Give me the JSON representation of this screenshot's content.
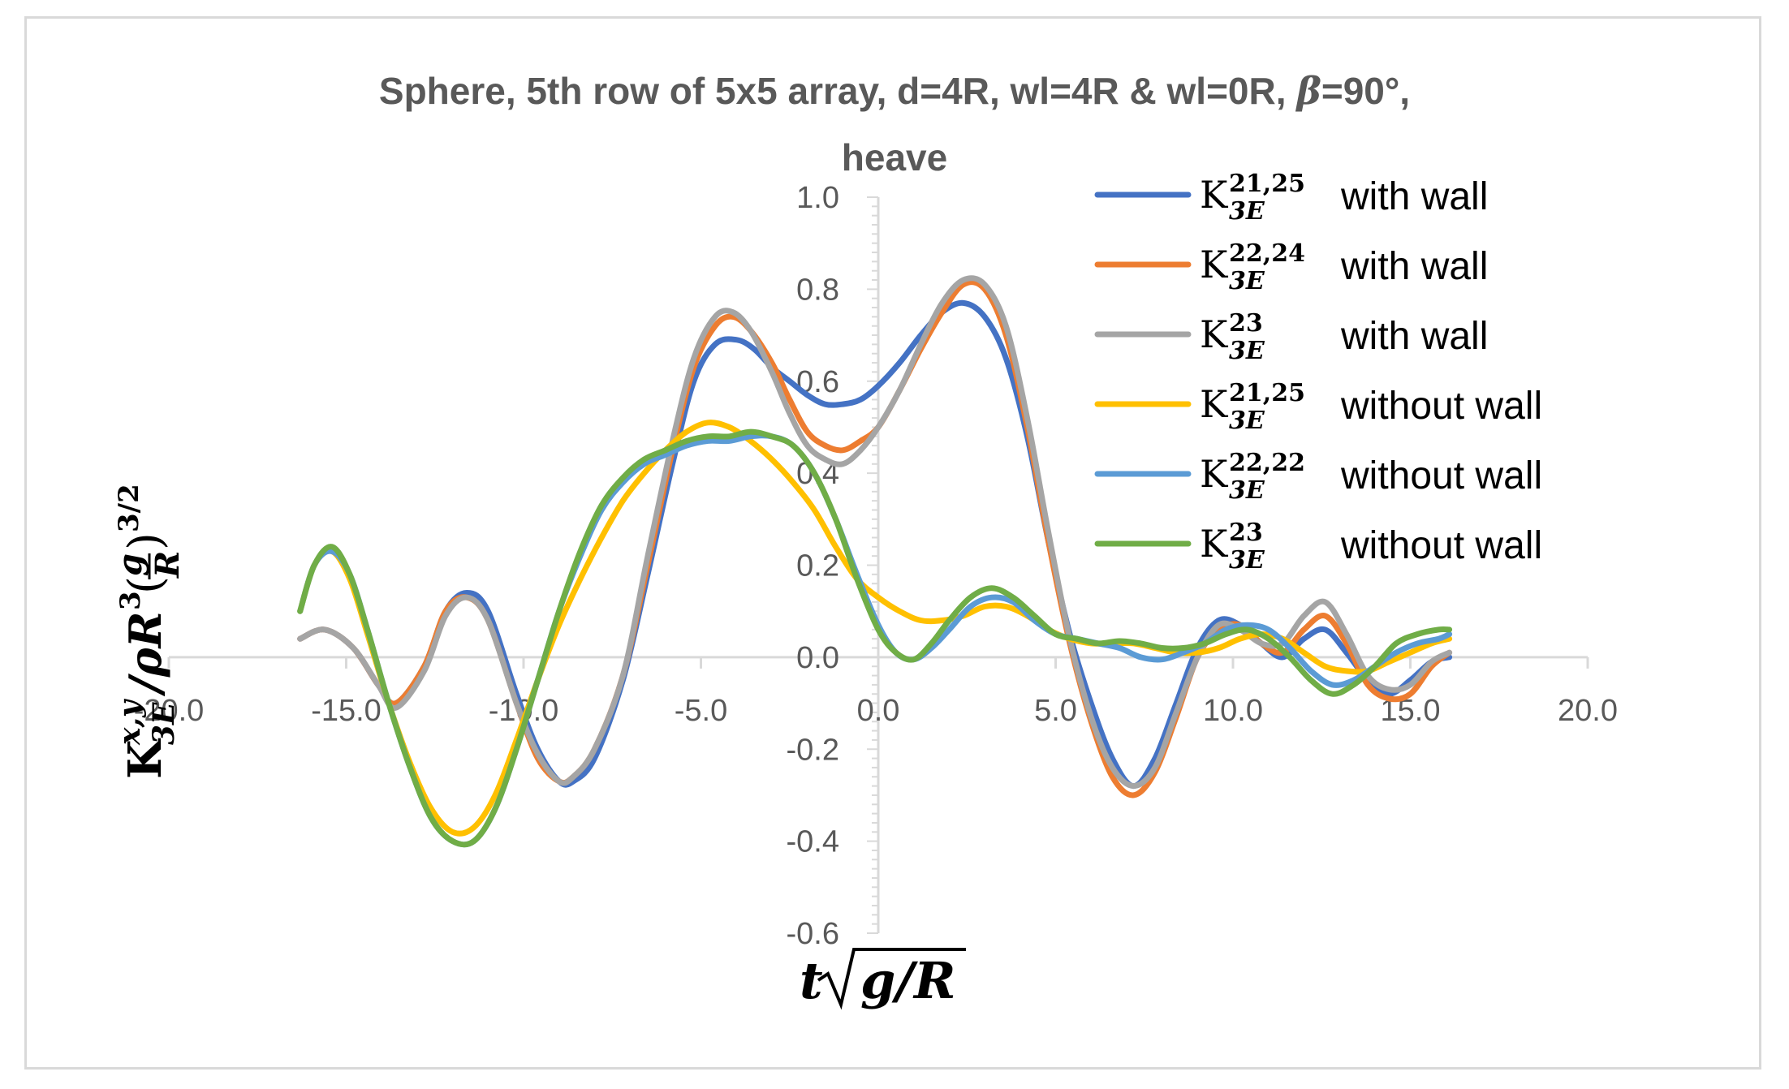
{
  "chart_data": {
    "type": "line",
    "title": "Sphere, 5th row of 5x5 array, d=4R, wl=4R & wl=0R, β=90°, heave",
    "title_line1": "Sphere, 5th row of 5x5 array, d=4R, wl=4R & wl=0R, ",
    "title_beta": "β",
    "title_line1_end": "=90°,",
    "title_line2": "heave",
    "xlabel": "t√g/R",
    "ylabel": "K3E x,y / ρR³ (g/R)^3/2",
    "xlim": [
      -20,
      20
    ],
    "ylim": [
      -0.6,
      1.0
    ],
    "x_ticks": [
      "-20.0",
      "-15.0",
      "-10.0",
      "-5.0",
      "0.0",
      "5.0",
      "10.0",
      "15.0",
      "20.0"
    ],
    "y_ticks": [
      "1.0",
      "0.8",
      "0.6",
      "0.4",
      "0.2",
      "0.0",
      "-0.2",
      "-0.4",
      "-0.6"
    ],
    "legend_position": "top-right",
    "series": [
      {
        "name": "K3E 21,25 with wall",
        "k": "K",
        "sup": "21,25",
        "sub": "3E",
        "suffix": "with wall",
        "color": "#4472C4",
        "x": [
          -16.3,
          -15.6,
          -14.8,
          -14.1,
          -13.6,
          -12.8,
          -12.2,
          -11.6,
          -11,
          -10.2,
          -9.6,
          -9,
          -8.6,
          -8,
          -7.2,
          -6.5,
          -5.8,
          -5.2,
          -4.6,
          -4,
          -3.5,
          -3,
          -2.5,
          -2,
          -1.5,
          -1,
          -0.5,
          0,
          0.6,
          1.2,
          1.8,
          2.4,
          3,
          3.6,
          4.2,
          4.8,
          5.4,
          6,
          6.6,
          7.2,
          7.8,
          8.4,
          9,
          9.6,
          10.2,
          10.8,
          11.4,
          12,
          12.6,
          13.2,
          13.8,
          14.4,
          15,
          15.6,
          16.1
        ],
        "y": [
          0.04,
          0.06,
          0.02,
          -0.06,
          -0.1,
          -0.02,
          0.1,
          0.14,
          0.1,
          -0.08,
          -0.2,
          -0.27,
          -0.27,
          -0.22,
          -0.05,
          0.18,
          0.42,
          0.6,
          0.68,
          0.69,
          0.67,
          0.63,
          0.6,
          0.57,
          0.55,
          0.55,
          0.56,
          0.59,
          0.64,
          0.7,
          0.75,
          0.77,
          0.74,
          0.65,
          0.48,
          0.25,
          0.05,
          -0.1,
          -0.22,
          -0.28,
          -0.22,
          -0.1,
          0.02,
          0.08,
          0.07,
          0.03,
          0,
          0.04,
          0.06,
          0.01,
          -0.05,
          -0.08,
          -0.05,
          -0.01,
          0.0
        ]
      },
      {
        "name": "K3E 22,24 with wall",
        "k": "K",
        "sup": "22,24",
        "sub": "3E",
        "suffix": "with wall",
        "color": "#ED7D31",
        "x": [
          -16.3,
          -15.6,
          -14.8,
          -14.1,
          -13.6,
          -12.8,
          -12.2,
          -11.6,
          -11,
          -10.2,
          -9.6,
          -9,
          -8.6,
          -8,
          -7.2,
          -6.5,
          -5.8,
          -5.2,
          -4.6,
          -4.1,
          -3.6,
          -3,
          -2.5,
          -2,
          -1.5,
          -1,
          -0.5,
          0,
          0.6,
          1.2,
          1.8,
          2.4,
          3,
          3.6,
          4.2,
          4.8,
          5.4,
          6,
          6.6,
          7.2,
          7.8,
          8.4,
          9,
          9.6,
          10.2,
          10.8,
          11.4,
          12,
          12.6,
          13.2,
          13.8,
          14.4,
          15,
          15.6,
          16.1
        ],
        "y": [
          0.04,
          0.06,
          0.02,
          -0.06,
          -0.1,
          -0.02,
          0.1,
          0.13,
          0.08,
          -0.1,
          -0.22,
          -0.27,
          -0.26,
          -0.2,
          -0.04,
          0.2,
          0.45,
          0.63,
          0.72,
          0.74,
          0.71,
          0.64,
          0.56,
          0.49,
          0.46,
          0.45,
          0.47,
          0.5,
          0.58,
          0.67,
          0.75,
          0.81,
          0.8,
          0.7,
          0.5,
          0.25,
          0.03,
          -0.14,
          -0.26,
          -0.3,
          -0.25,
          -0.13,
          0,
          0.06,
          0.07,
          0.03,
          0.01,
          0.06,
          0.09,
          0.03,
          -0.06,
          -0.09,
          -0.08,
          -0.02,
          0.01
        ]
      },
      {
        "name": "K3E 23 with wall",
        "k": "K",
        "sup": "23",
        "sub": "3E",
        "suffix": "with wall",
        "color": "#A5A5A5",
        "x": [
          -16.3,
          -15.6,
          -14.8,
          -14.1,
          -13.6,
          -12.8,
          -12.2,
          -11.6,
          -11,
          -10.2,
          -9.6,
          -9,
          -8.6,
          -8,
          -7.2,
          -6.5,
          -5.8,
          -5.2,
          -4.6,
          -4.1,
          -3.6,
          -3,
          -2.5,
          -2,
          -1.5,
          -1,
          -0.5,
          0,
          0.6,
          1.2,
          1.8,
          2.4,
          3,
          3.6,
          4.2,
          4.8,
          5.4,
          6,
          6.6,
          7.2,
          7.8,
          8.4,
          9,
          9.6,
          10.2,
          10.8,
          11.4,
          12,
          12.6,
          13.2,
          13.8,
          14.4,
          15,
          15.6,
          16.1
        ],
        "y": [
          0.04,
          0.06,
          0.02,
          -0.06,
          -0.11,
          -0.03,
          0.09,
          0.13,
          0.08,
          -0.1,
          -0.21,
          -0.27,
          -0.26,
          -0.2,
          -0.04,
          0.22,
          0.47,
          0.65,
          0.74,
          0.75,
          0.71,
          0.62,
          0.53,
          0.46,
          0.43,
          0.42,
          0.45,
          0.5,
          0.58,
          0.68,
          0.77,
          0.82,
          0.81,
          0.72,
          0.52,
          0.27,
          0.04,
          -0.13,
          -0.24,
          -0.28,
          -0.24,
          -0.12,
          0,
          0.07,
          0.06,
          0.03,
          0.03,
          0.09,
          0.12,
          0.05,
          -0.04,
          -0.07,
          -0.06,
          -0.01,
          0.01
        ]
      },
      {
        "name": "K3E 21,25 without wall",
        "k": "K",
        "sup": "21,25",
        "sub": "3E",
        "suffix": "without wall",
        "color": "#FFC000",
        "x": [
          -16.3,
          -15.9,
          -15.4,
          -14.9,
          -14.4,
          -13.8,
          -13.2,
          -12.6,
          -12,
          -11.4,
          -10.8,
          -10.2,
          -9.6,
          -9,
          -8.4,
          -7.8,
          -7.2,
          -6.6,
          -6,
          -5.4,
          -4.8,
          -4.2,
          -3.6,
          -3,
          -2.4,
          -1.8,
          -1.2,
          -0.6,
          0,
          0.6,
          1.2,
          1.8,
          2.4,
          3,
          3.6,
          4.2,
          4.8,
          5.4,
          6,
          6.6,
          7.2,
          7.8,
          8.4,
          9,
          9.6,
          10.2,
          10.8,
          11.4,
          12,
          12.6,
          13.2,
          13.8,
          14.4,
          15,
          15.6,
          16.1
        ],
        "y": [
          0.1,
          0.2,
          0.23,
          0.17,
          0.05,
          -0.1,
          -0.23,
          -0.33,
          -0.38,
          -0.37,
          -0.3,
          -0.18,
          -0.05,
          0.07,
          0.17,
          0.26,
          0.34,
          0.4,
          0.45,
          0.49,
          0.51,
          0.5,
          0.47,
          0.43,
          0.38,
          0.32,
          0.24,
          0.17,
          0.13,
          0.1,
          0.08,
          0.08,
          0.09,
          0.11,
          0.11,
          0.09,
          0.06,
          0.04,
          0.03,
          0.03,
          0.03,
          0.02,
          0.01,
          0.01,
          0.02,
          0.04,
          0.05,
          0.04,
          0.01,
          -0.02,
          -0.03,
          -0.03,
          -0.01,
          0.01,
          0.03,
          0.04
        ]
      },
      {
        "name": "K3E 22,22 without wall",
        "k": "K",
        "sup": "22,22",
        "sub": "3E",
        "suffix": "without wall",
        "color": "#5B9BD5",
        "x": [
          -16.3,
          -15.9,
          -15.4,
          -14.9,
          -14.4,
          -13.8,
          -13.2,
          -12.6,
          -12,
          -11.4,
          -10.8,
          -10.2,
          -9.6,
          -9,
          -8.4,
          -7.8,
          -7.2,
          -6.6,
          -6,
          -5.4,
          -4.8,
          -4.2,
          -3.6,
          -3,
          -2.4,
          -1.8,
          -1.2,
          -0.6,
          0,
          0.5,
          1,
          1.5,
          2,
          2.6,
          3.2,
          3.8,
          4.4,
          5,
          5.6,
          6.2,
          6.8,
          7.4,
          8,
          8.6,
          9.2,
          9.8,
          10.4,
          11,
          11.6,
          12.2,
          12.8,
          13.4,
          14,
          14.6,
          15.2,
          15.8,
          16.1
        ],
        "y": [
          0.1,
          0.2,
          0.23,
          0.18,
          0.06,
          -0.1,
          -0.24,
          -0.35,
          -0.4,
          -0.4,
          -0.33,
          -0.2,
          -0.05,
          0.1,
          0.22,
          0.32,
          0.38,
          0.42,
          0.44,
          0.46,
          0.47,
          0.47,
          0.48,
          0.48,
          0.46,
          0.4,
          0.3,
          0.18,
          0.07,
          0.01,
          -0.005,
          0.02,
          0.06,
          0.11,
          0.13,
          0.12,
          0.08,
          0.05,
          0.04,
          0.03,
          0.02,
          0.0,
          -0.005,
          0.01,
          0.03,
          0.06,
          0.07,
          0.06,
          0.02,
          -0.03,
          -0.06,
          -0.05,
          -0.02,
          0.01,
          0.03,
          0.04,
          0.05
        ]
      },
      {
        "name": "K3E 23 without wall",
        "k": "K",
        "sup": "23",
        "sub": "3E",
        "suffix": "without wall",
        "color": "#70AD47",
        "x": [
          -16.3,
          -15.9,
          -15.4,
          -14.9,
          -14.4,
          -13.8,
          -13.2,
          -12.6,
          -12,
          -11.4,
          -10.8,
          -10.2,
          -9.6,
          -9,
          -8.4,
          -7.8,
          -7.2,
          -6.6,
          -6,
          -5.4,
          -4.8,
          -4.2,
          -3.6,
          -3,
          -2.4,
          -1.8,
          -1.2,
          -0.6,
          0,
          0.5,
          1,
          1.5,
          2,
          2.6,
          3.2,
          3.8,
          4.4,
          5,
          5.6,
          6.2,
          6.8,
          7.4,
          8,
          8.6,
          9.2,
          9.8,
          10.4,
          11,
          11.6,
          12.2,
          12.8,
          13.4,
          14,
          14.6,
          15.2,
          15.8,
          16.1
        ],
        "y": [
          0.1,
          0.2,
          0.24,
          0.18,
          0.06,
          -0.1,
          -0.24,
          -0.35,
          -0.4,
          -0.4,
          -0.33,
          -0.2,
          -0.05,
          0.1,
          0.23,
          0.33,
          0.39,
          0.43,
          0.45,
          0.47,
          0.48,
          0.48,
          0.49,
          0.48,
          0.46,
          0.4,
          0.3,
          0.17,
          0.06,
          0.01,
          -0.005,
          0.03,
          0.08,
          0.13,
          0.15,
          0.13,
          0.09,
          0.05,
          0.04,
          0.03,
          0.035,
          0.03,
          0.02,
          0.02,
          0.03,
          0.05,
          0.06,
          0.04,
          0.0,
          -0.05,
          -0.08,
          -0.06,
          -0.02,
          0.03,
          0.05,
          0.06,
          0.06
        ]
      }
    ]
  }
}
